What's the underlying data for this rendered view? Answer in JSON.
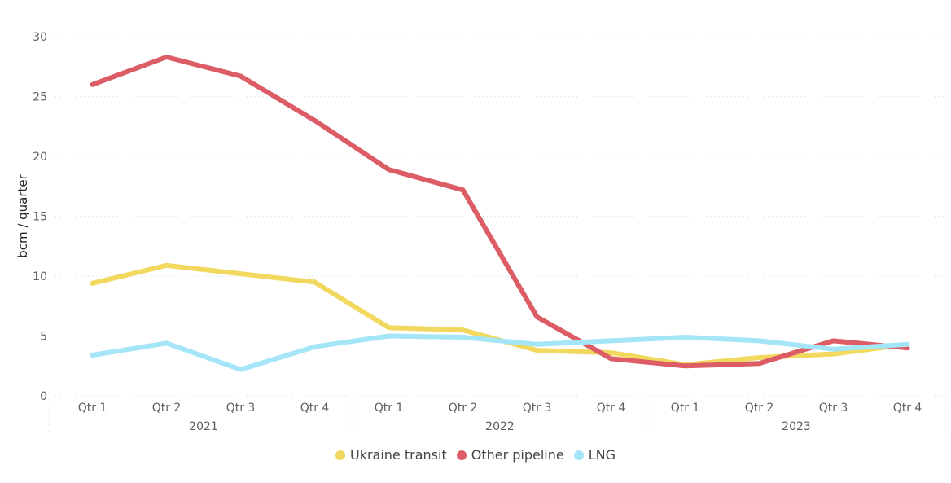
{
  "chart_data": {
    "type": "line",
    "title": "",
    "xlabel": "",
    "ylabel": "bcm / quarter",
    "ylim": [
      0,
      30
    ],
    "yticks": [
      0,
      5,
      10,
      15,
      20,
      25,
      30
    ],
    "categories": [
      "Qtr 1",
      "Qtr 2",
      "Qtr 3",
      "Qtr 4",
      "Qtr 1",
      "Qtr 2",
      "Qtr 3",
      "Qtr 4",
      "Qtr 1",
      "Qtr 2",
      "Qtr 3",
      "Qtr 4"
    ],
    "groups": [
      {
        "label": "2021",
        "count": 4
      },
      {
        "label": "2022",
        "count": 4
      },
      {
        "label": "2023",
        "count": 4
      }
    ],
    "grid": true,
    "legend_position": "bottom",
    "series": [
      {
        "name": "Ukraine transit",
        "color": "#F2D85E",
        "values": [
          9.4,
          10.9,
          10.2,
          9.5,
          5.7,
          5.5,
          3.8,
          3.6,
          2.6,
          3.2,
          3.5,
          4.3
        ]
      },
      {
        "name": "Other pipeline",
        "color": "#DC5D66",
        "values": [
          26.0,
          28.3,
          26.7,
          23.0,
          18.9,
          17.2,
          6.6,
          3.1,
          2.5,
          2.7,
          4.6,
          4.0
        ]
      },
      {
        "name": "LNG",
        "color": "#A5E5F8",
        "values": [
          3.4,
          4.4,
          2.2,
          4.1,
          5.0,
          4.9,
          4.3,
          4.6,
          4.9,
          4.6,
          3.9,
          4.3
        ]
      }
    ]
  }
}
